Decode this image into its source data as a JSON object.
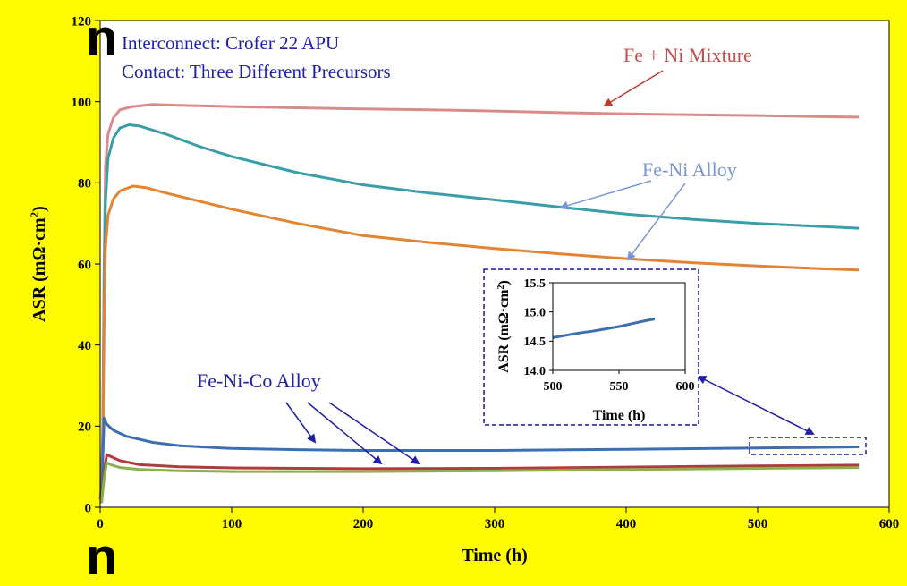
{
  "edge_glyphs": {
    "top": "n",
    "bottom": "n"
  },
  "colors": {
    "background": "#fffc00",
    "plot_bg": "#ffffff",
    "fe_ni_mixture": "#d98b8b",
    "fe_ni_alloy_teal": "#3a9ea8",
    "fe_ni_alloy_orange": "#e38432",
    "fe_ni_co_blue": "#3d6fb0",
    "fe_ni_co_red": "#b23a3a",
    "fe_ni_co_green": "#8cb04c",
    "annotation_blue": "#1f1fa8",
    "annotation_lightblue": "#7896d8",
    "inset_box": "#1a1aa0"
  },
  "chart_data": [
    {
      "type": "line",
      "xlabel": "Time (h)",
      "ylabel_main": "ASR (mΩ·cm",
      "ylabel_sup": "2",
      "ylabel_close": ")",
      "xlim": [
        0,
        600
      ],
      "ylim": [
        0,
        120
      ],
      "xticks": [
        "0",
        "100",
        "200",
        "300",
        "400",
        "500",
        "600"
      ],
      "yticks": [
        "0",
        "20",
        "40",
        "60",
        "80",
        "100",
        "120"
      ],
      "grid": false,
      "series": [
        {
          "name": "Fe + Ni Mixture",
          "color_key": "fe_ni_mixture",
          "points": [
            [
              0,
              2
            ],
            [
              1,
              3
            ],
            [
              2,
              10
            ],
            [
              3,
              60
            ],
            [
              4,
              84
            ],
            [
              6,
              92
            ],
            [
              10,
              96
            ],
            [
              15,
              98
            ],
            [
              25,
              98.8
            ],
            [
              40,
              99.3
            ],
            [
              60,
              99.1
            ],
            [
              100,
              98.8
            ],
            [
              150,
              98.5
            ],
            [
              200,
              98.2
            ],
            [
              250,
              98
            ],
            [
              300,
              97.7
            ],
            [
              350,
              97.3
            ],
            [
              400,
              97
            ],
            [
              450,
              96.8
            ],
            [
              500,
              96.6
            ],
            [
              550,
              96.3
            ],
            [
              577,
              96.2
            ]
          ]
        },
        {
          "name": "Fe-Ni Alloy",
          "color_key": "fe_ni_alloy_teal",
          "points": [
            [
              0,
              2
            ],
            [
              1,
              5
            ],
            [
              2,
              20
            ],
            [
              3,
              55
            ],
            [
              4,
              75
            ],
            [
              6,
              86
            ],
            [
              10,
              91
            ],
            [
              15,
              93.5
            ],
            [
              22,
              94.3
            ],
            [
              30,
              94
            ],
            [
              50,
              92
            ],
            [
              75,
              89
            ],
            [
              100,
              86.5
            ],
            [
              150,
              82.5
            ],
            [
              200,
              79.5
            ],
            [
              250,
              77.5
            ],
            [
              300,
              75.8
            ],
            [
              350,
              74
            ],
            [
              400,
              72.3
            ],
            [
              450,
              71
            ],
            [
              500,
              70
            ],
            [
              550,
              69.2
            ],
            [
              577,
              68.8
            ]
          ]
        },
        {
          "name": "Fe-Ni Alloy",
          "color_key": "fe_ni_alloy_orange",
          "points": [
            [
              0,
              2
            ],
            [
              1,
              5
            ],
            [
              2,
              15
            ],
            [
              3,
              45
            ],
            [
              4,
              64
            ],
            [
              6,
              72
            ],
            [
              10,
              76
            ],
            [
              15,
              78
            ],
            [
              25,
              79.2
            ],
            [
              35,
              78.8
            ],
            [
              50,
              77.5
            ],
            [
              100,
              73.5
            ],
            [
              150,
              70
            ],
            [
              200,
              67
            ],
            [
              250,
              65.3
            ],
            [
              300,
              63.8
            ],
            [
              350,
              62.5
            ],
            [
              400,
              61.3
            ],
            [
              450,
              60.3
            ],
            [
              500,
              59.5
            ],
            [
              550,
              58.8
            ],
            [
              577,
              58.5
            ]
          ]
        },
        {
          "name": "Fe-Ni-Co Alloy",
          "color_key": "fe_ni_co_blue",
          "points": [
            [
              1,
              2
            ],
            [
              2,
              12
            ],
            [
              3,
              22
            ],
            [
              5,
              20.5
            ],
            [
              10,
              19
            ],
            [
              20,
              17.5
            ],
            [
              40,
              16
            ],
            [
              60,
              15.2
            ],
            [
              100,
              14.5
            ],
            [
              150,
              14.2
            ],
            [
              200,
              14
            ],
            [
              300,
              14
            ],
            [
              400,
              14.3
            ],
            [
              500,
              14.6
            ],
            [
              577,
              14.9
            ]
          ]
        },
        {
          "name": "Fe-Ni-Co Alloy",
          "color_key": "fe_ni_co_red",
          "points": [
            [
              1,
              1
            ],
            [
              3,
              8
            ],
            [
              5,
              13
            ],
            [
              8,
              12.5
            ],
            [
              15,
              11.5
            ],
            [
              30,
              10.5
            ],
            [
              60,
              10
            ],
            [
              100,
              9.7
            ],
            [
              200,
              9.5
            ],
            [
              300,
              9.6
            ],
            [
              400,
              9.9
            ],
            [
              500,
              10.2
            ],
            [
              577,
              10.4
            ]
          ]
        },
        {
          "name": "Fe-Ni-Co Alloy",
          "color_key": "fe_ni_co_green",
          "points": [
            [
              1,
              1
            ],
            [
              3,
              7
            ],
            [
              5,
              11
            ],
            [
              8,
              10.5
            ],
            [
              15,
              9.8
            ],
            [
              30,
              9.3
            ],
            [
              60,
              9
            ],
            [
              100,
              8.8
            ],
            [
              200,
              8.8
            ],
            [
              300,
              9
            ],
            [
              400,
              9.3
            ],
            [
              500,
              9.6
            ],
            [
              577,
              9.8
            ]
          ]
        }
      ],
      "annotations": {
        "interconnect": "Interconnect: Crofer 22 APU",
        "contact": "Contact: Three Different Precursors",
        "mixture_label": "Fe + Ni Mixture",
        "alloy_label": "Fe-Ni Alloy",
        "co_alloy_label": "Fe-Ni-Co Alloy"
      }
    },
    {
      "type": "line",
      "xlabel": "Time (h)",
      "ylabel_main": "ASR (mΩ·cm",
      "ylabel_sup": "2",
      "ylabel_close": ")",
      "xlim": [
        500,
        600
      ],
      "ylim": [
        14.0,
        15.5
      ],
      "xticks": [
        "500",
        "550",
        "600"
      ],
      "yticks": [
        "14.0",
        "14.5",
        "15.0",
        "15.5"
      ],
      "grid": false,
      "series": [
        {
          "name": "Fe-Ni-Co Alloy",
          "color_key": "fe_ni_co_blue",
          "points": [
            [
              500,
              14.56
            ],
            [
              510,
              14.6
            ],
            [
              520,
              14.64
            ],
            [
              530,
              14.67
            ],
            [
              540,
              14.71
            ],
            [
              550,
              14.75
            ],
            [
              560,
              14.8
            ],
            [
              570,
              14.85
            ],
            [
              577,
              14.88
            ]
          ]
        }
      ]
    }
  ]
}
